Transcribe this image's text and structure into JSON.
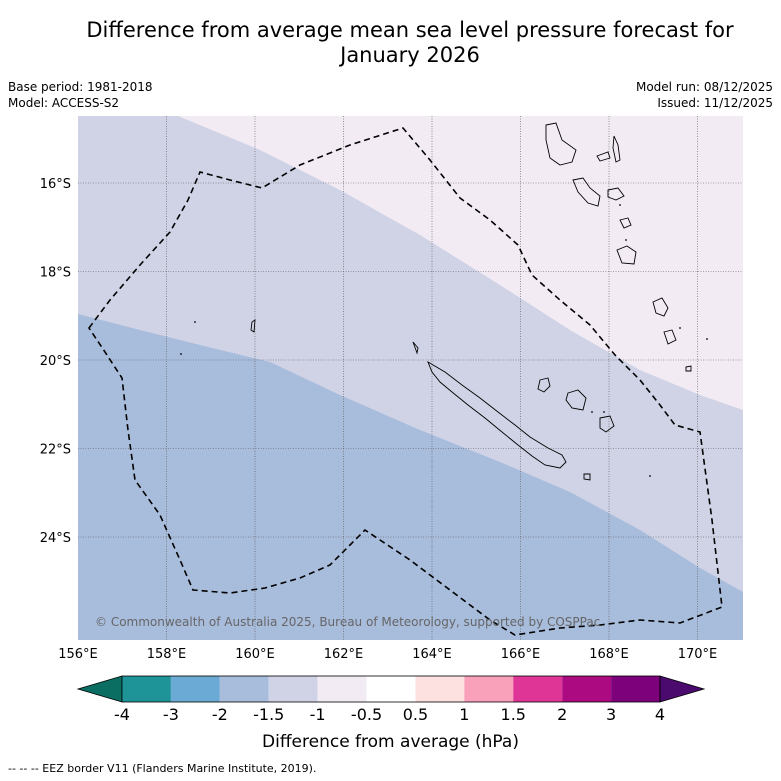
{
  "title": {
    "line1": "Difference from average mean sea level pressure forecast for",
    "line2": "January 2026"
  },
  "meta": {
    "base_period": "Base period: 1981-2018",
    "model": "Model: ACCESS-S2",
    "model_run": "Model run: 08/12/2025",
    "issued": "Issued: 11/12/2025"
  },
  "map": {
    "lon_labels": [
      "156°E",
      "158°E",
      "160°E",
      "162°E",
      "164°E",
      "166°E",
      "168°E",
      "170°E"
    ],
    "lat_labels": [
      "16°S",
      "18°S",
      "20°S",
      "22°S",
      "24°S"
    ],
    "copyright": "© Commonwealth of Australia 2025, Bureau of Meteorology, supported by COSPPac",
    "colors": {
      "band_minus2_minus1_5": "#a8bcdc",
      "band_minus1_5_minus1": "#d0d3e6",
      "band_minus1_minus0_5": "#f2ebf4"
    }
  },
  "colorbar": {
    "ticks": [
      "-4",
      "-3",
      "-2",
      "-1.5",
      "-1",
      "-0.5",
      "0.5",
      "1",
      "1.5",
      "2",
      "3",
      "4"
    ],
    "colors": [
      "#0b6e62",
      "#1f9498",
      "#6aaad4",
      "#a8bcdc",
      "#d0d3e6",
      "#f2ebf4",
      "#ffffff",
      "#fde0e0",
      "#f9a0ba",
      "#df3597",
      "#ab0a80",
      "#7c017a",
      "#4a0a6e"
    ],
    "label": "Difference from average (hPa)"
  },
  "footer": "--  --  -- EEZ border V11 (Flanders Marine Institute, 2019)."
}
